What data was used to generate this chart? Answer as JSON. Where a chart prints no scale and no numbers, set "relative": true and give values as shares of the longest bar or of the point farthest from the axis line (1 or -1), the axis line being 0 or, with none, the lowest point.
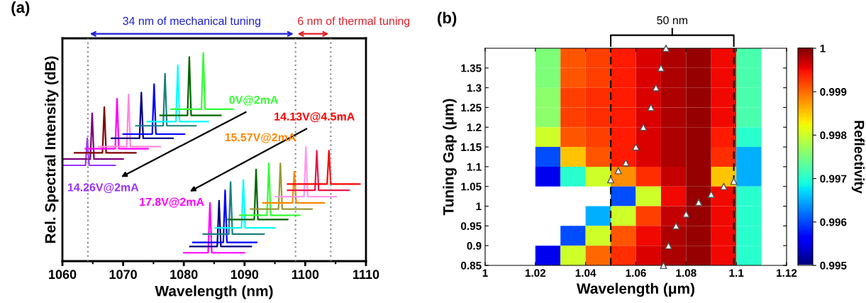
{
  "chart_data": [
    {
      "type": "line",
      "title": "(a)",
      "xlabel": "Wavelength (nm)",
      "ylabel": "Rel. Spectral Intensity (dB)",
      "relative": true,
      "xlim": [
        1060,
        1110
      ],
      "xticks": [
        1060,
        1070,
        1080,
        1090,
        1100,
        1110
      ],
      "grid": false,
      "legend": false,
      "marker": "none",
      "line_style": "solid",
      "series": [
        {
          "name": "14.26V@2mA",
          "color": "#9933ff",
          "x": [
            1060,
            1063.8,
            1064.1,
            1064.4,
            1068.7
          ],
          "values": [
            0.46,
            0.46,
            0.59,
            0.46,
            0.46
          ]
        },
        {
          "color": "#800080",
          "x": [
            1060,
            1064.6,
            1064.9,
            1065.2,
            1070
          ],
          "values": [
            0.49,
            0.49,
            0.71,
            0.49,
            0.49
          ]
        },
        {
          "color": "#800000",
          "x": [
            1062,
            1066.6,
            1066.9,
            1067.2,
            1072.1
          ],
          "values": [
            0.52,
            0.52,
            0.74,
            0.52,
            0.52
          ]
        },
        {
          "color": "#ff00ff",
          "x": [
            1063.8,
            1068.7,
            1069,
            1069.3,
            1074.1
          ],
          "values": [
            0.54,
            0.54,
            0.78,
            0.54,
            0.54
          ]
        },
        {
          "color": "#ff88dd",
          "x": [
            1066,
            1070.6,
            1070.9,
            1071.2,
            1076.1
          ],
          "values": [
            0.55,
            0.55,
            0.8,
            0.55,
            0.55
          ]
        },
        {
          "color": "#000080",
          "x": [
            1068.1,
            1072.7,
            1073,
            1073.3,
            1078.2
          ],
          "values": [
            0.59,
            0.59,
            0.81,
            0.59,
            0.59
          ]
        },
        {
          "color": "#0000ff",
          "x": [
            1070,
            1074.8,
            1075.1,
            1075.4,
            1080.1
          ],
          "values": [
            0.61,
            0.61,
            0.85,
            0.61,
            0.61
          ]
        },
        {
          "color": "#1a8080",
          "x": [
            1072.1,
            1076.6,
            1076.9,
            1077.2,
            1082
          ],
          "values": [
            0.65,
            0.65,
            0.9,
            0.65,
            0.65
          ]
        },
        {
          "color": "#00ffff",
          "x": [
            1074,
            1078.7,
            1079,
            1079.3,
            1084
          ],
          "values": [
            0.67,
            0.67,
            0.94,
            0.67,
            0.67
          ]
        },
        {
          "color": "#006600",
          "x": [
            1076.1,
            1080.6,
            1080.9,
            1081.2,
            1086.1
          ],
          "values": [
            0.7,
            0.7,
            0.98,
            0.7,
            0.7
          ]
        },
        {
          "name": "0V@2mA",
          "color": "#33ff33",
          "x": [
            1077.9,
            1082.9,
            1083.2,
            1083.5,
            1088.1
          ],
          "values": [
            0.73,
            0.73,
            1.0,
            0.73,
            0.73
          ]
        },
        {
          "name": "17.8V@2mA",
          "color": "#ff00ff",
          "x": [
            1080,
            1084,
            1084.3,
            1084.6,
            1090
          ],
          "values": [
            0.04,
            0.04,
            0.28,
            0.04,
            0.04
          ]
        },
        {
          "color": "#000080",
          "x": [
            1081,
            1085.5,
            1085.8,
            1086.1,
            1091.1
          ],
          "values": [
            0.07,
            0.07,
            0.29,
            0.07,
            0.07
          ]
        },
        {
          "color": "#0000ff",
          "x": [
            1081.5,
            1086.5,
            1086.8,
            1087.1,
            1092
          ],
          "values": [
            0.09,
            0.09,
            0.34,
            0.09,
            0.09
          ]
        },
        {
          "color": "#1a8080",
          "x": [
            1083.2,
            1087.4,
            1087.7,
            1088,
            1093.2
          ],
          "values": [
            0.13,
            0.13,
            0.38,
            0.13,
            0.13
          ]
        },
        {
          "color": "#00ffff",
          "x": [
            1085.2,
            1089.5,
            1089.8,
            1090.1,
            1095
          ],
          "values": [
            0.16,
            0.16,
            0.39,
            0.16,
            0.16
          ]
        },
        {
          "color": "#006600",
          "x": [
            1087.3,
            1091.6,
            1091.9,
            1092.2,
            1097.1
          ],
          "values": [
            0.2,
            0.2,
            0.44,
            0.2,
            0.2
          ]
        },
        {
          "color": "#33ff33",
          "x": [
            1089.2,
            1093.7,
            1094,
            1094.3,
            1099.1
          ],
          "values": [
            0.22,
            0.22,
            0.47,
            0.22,
            0.22
          ]
        },
        {
          "color": "#999933",
          "x": [
            1091,
            1095.6,
            1095.9,
            1096.2,
            1101.1
          ],
          "values": [
            0.25,
            0.25,
            0.47,
            0.25,
            0.25
          ]
        },
        {
          "name": "15.57V@2mA",
          "color": "#ff8800",
          "x": [
            1093,
            1097.9,
            1098.2,
            1098.5,
            1103.1
          ],
          "values": [
            0.28,
            0.28,
            0.43,
            0.28,
            0.28
          ]
        },
        {
          "color": "#ff99ee",
          "x": [
            1095.1,
            1099.8,
            1100.1,
            1100.4,
            1105.1
          ],
          "values": [
            0.31,
            0.31,
            0.55,
            0.31,
            0.31
          ]
        },
        {
          "color": "#e6194b",
          "x": [
            1097.1,
            1101.6,
            1101.9,
            1102.2,
            1107.2
          ],
          "values": [
            0.34,
            0.34,
            0.53,
            0.34,
            0.34
          ]
        },
        {
          "name": "14.13V@4.5mA",
          "color": "#ff0000",
          "x": [
            1097.1,
            1103.6,
            1103.9,
            1104.2,
            1109
          ],
          "values": [
            0.37,
            0.37,
            0.53,
            0.37,
            0.37
          ]
        }
      ],
      "ref_lines": [
        {
          "axis": "x",
          "value": 1064.2,
          "color": "#808080",
          "line_style": "dotted"
        },
        {
          "axis": "x",
          "value": 1098.4,
          "color": "#808080",
          "line_style": "dotted"
        },
        {
          "axis": "x",
          "value": 1104.2,
          "color": "#808080",
          "line_style": "dotted"
        }
      ],
      "annotations": [
        "34 nm of mechanical tuning",
        "6 nm of thermal tuning"
      ]
    },
    {
      "type": "heatmap",
      "title": "(b)",
      "xlabel": "Wavelength (μm)",
      "ylabel": "Tuning Gap (μm)",
      "clabel": "Reflectivity",
      "x": [
        1.005,
        1.015,
        1.025,
        1.035,
        1.045,
        1.055,
        1.065,
        1.075,
        1.085,
        1.095,
        1.105,
        1.115
      ],
      "y": [
        1.375,
        1.325,
        1.275,
        1.225,
        1.175,
        1.125,
        1.075,
        1.025,
        0.975,
        0.925,
        0.875
      ],
      "cells": [
        [
          null,
          null,
          0.9975,
          0.9991,
          0.9992,
          0.9994,
          0.9996,
          0.9998,
          0.9999,
          0.9995,
          0.9972,
          null
        ],
        [
          null,
          null,
          0.9975,
          0.9991,
          0.9992,
          0.9994,
          0.9996,
          0.9998,
          0.9999,
          0.9995,
          0.9972,
          null
        ],
        [
          null,
          null,
          0.9976,
          0.9992,
          0.9993,
          0.9994,
          0.9996,
          0.9998,
          0.9999,
          0.9995,
          0.9972,
          null
        ],
        [
          null,
          null,
          0.9976,
          0.9992,
          0.9993,
          0.9994,
          0.9996,
          0.9998,
          0.9999,
          0.9995,
          0.9972,
          null
        ],
        [
          null,
          null,
          0.998,
          0.9991,
          0.9992,
          0.9994,
          0.9996,
          0.9998,
          0.9999,
          0.9994,
          0.997,
          null
        ],
        [
          null,
          null,
          0.996,
          0.9985,
          0.9991,
          0.9994,
          0.9996,
          0.9998,
          0.9999,
          0.9993,
          0.9965,
          null
        ],
        [
          null,
          null,
          0.9955,
          0.997,
          0.998,
          0.9988,
          0.9993,
          0.9997,
          0.9999,
          0.9985,
          0.9965,
          null
        ],
        [
          null,
          null,
          null,
          null,
          null,
          0.996,
          0.998,
          0.9995,
          0.9999,
          0.9995,
          0.997,
          null
        ],
        [
          null,
          null,
          null,
          null,
          0.9965,
          0.998,
          0.9992,
          0.9997,
          0.9999,
          0.9995,
          0.997,
          null
        ],
        [
          null,
          null,
          null,
          0.996,
          0.998,
          0.9991,
          0.9995,
          0.9998,
          0.9999,
          0.9995,
          0.997,
          null
        ],
        [
          null,
          null,
          0.9955,
          0.998,
          0.999,
          0.9993,
          0.9996,
          0.9998,
          0.9999,
          0.9995,
          0.997,
          null
        ]
      ],
      "clim": [
        0.995,
        1
      ],
      "cticks": [
        0.995,
        0.996,
        0.997,
        0.998,
        0.999,
        1
      ],
      "xlim": [
        1,
        1.12
      ],
      "xticks": [
        1,
        1.02,
        1.04,
        1.06,
        1.08,
        1.1,
        1.12
      ],
      "ylim": [
        0.85,
        1.4
      ],
      "yticks": [
        0.85,
        0.9,
        0.95,
        1,
        1.05,
        1.1,
        1.15,
        1.2,
        1.25,
        1.3,
        1.35
      ],
      "series": [
        {
          "type": "scatter",
          "color": "#ffffff",
          "marker": "triangle",
          "x": [
            1.072,
            1.07,
            1.068,
            1.066,
            1.063,
            1.06,
            1.056,
            1.053,
            1.05
          ],
          "values": [
            1.4,
            1.35,
            1.3,
            1.25,
            1.2,
            1.15,
            1.11,
            1.09,
            1.067
          ]
        },
        {
          "type": "scatter",
          "color": "#ffffff",
          "marker": "triangle",
          "x": [
            1.071,
            1.073,
            1.076,
            1.08,
            1.085,
            1.09,
            1.095,
            1.099
          ],
          "values": [
            0.85,
            0.9,
            0.95,
            0.98,
            1.01,
            1.03,
            1.05,
            1.063
          ]
        }
      ],
      "ref_lines": [
        {
          "axis": "x",
          "value": 1.05,
          "color": "#000000",
          "line_style": "dashed"
        },
        {
          "axis": "x",
          "value": 1.099,
          "color": "#000000",
          "line_style": "dashed"
        }
      ],
      "annotations": [
        "50 nm"
      ]
    }
  ]
}
